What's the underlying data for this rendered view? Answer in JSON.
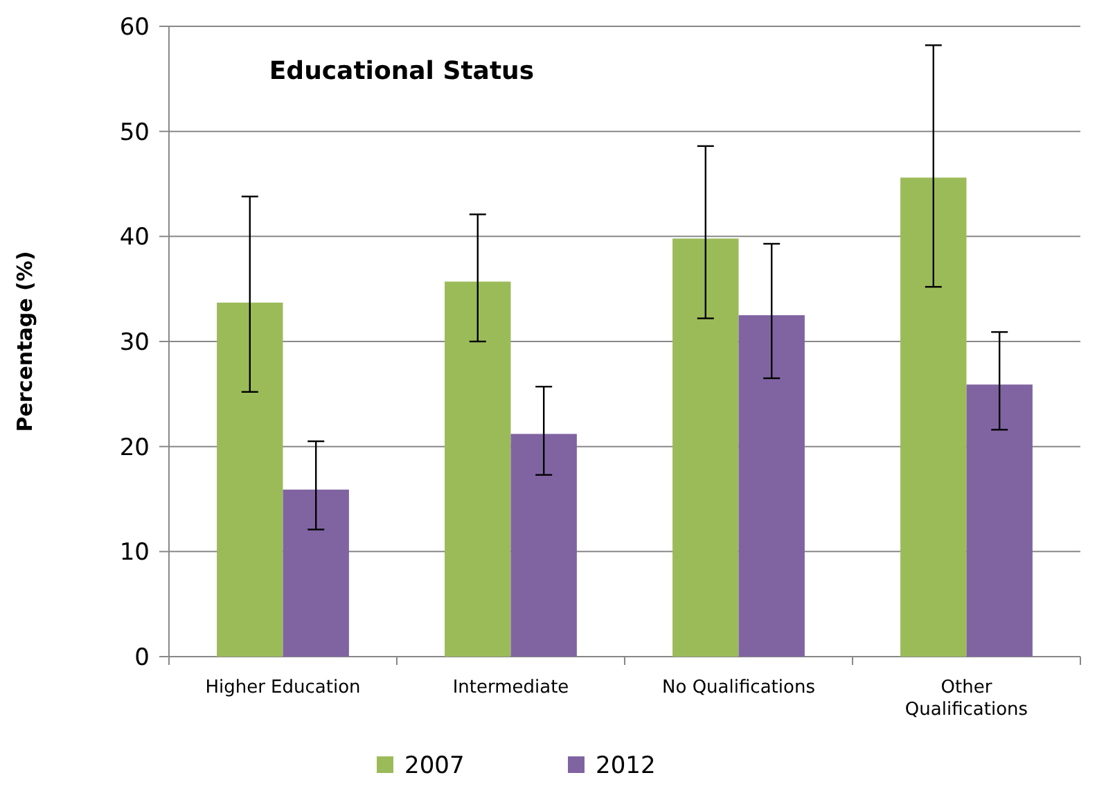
{
  "chart_data": {
    "type": "bar",
    "title": "Educational Status",
    "ylabel": "Percentage (%)",
    "categories": [
      "Higher Education",
      "Intermediate",
      "No Qualifications",
      "Other Qualifications"
    ],
    "series": [
      {
        "name": "2007",
        "color": "#9bbb59",
        "values": [
          33.7,
          35.7,
          39.8,
          45.6
        ],
        "errors": [
          [
            25.2,
            43.8
          ],
          [
            30.0,
            42.1
          ],
          [
            32.2,
            48.6
          ],
          [
            35.2,
            58.2
          ]
        ]
      },
      {
        "name": "2012",
        "color": "#8064a2",
        "values": [
          15.9,
          21.2,
          32.5,
          25.9
        ],
        "errors": [
          [
            12.1,
            20.5
          ],
          [
            17.3,
            25.7
          ],
          [
            26.5,
            39.3
          ],
          [
            21.6,
            30.9
          ]
        ]
      }
    ],
    "ylim": [
      0,
      60
    ],
    "yticks": [
      0,
      10,
      20,
      30,
      40,
      50,
      60
    ],
    "grid": "y",
    "legend": "bottom"
  }
}
